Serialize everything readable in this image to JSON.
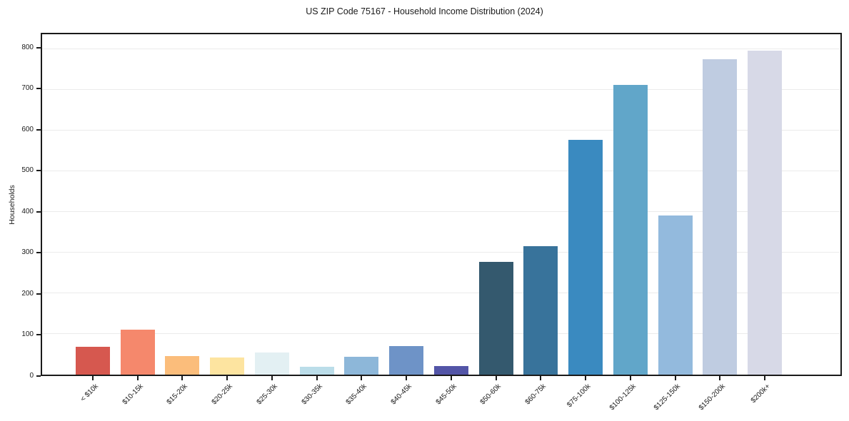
{
  "figure": {
    "background": "#ffffff"
  },
  "chart_data": {
    "type": "bar",
    "title": "US ZIP Code 75167 - Household Income Distribution (2024)",
    "xlabel": "",
    "ylabel": "Households",
    "categories": [
      "< $10k",
      "$10-15k",
      "$15-20k",
      "$20-25k",
      "$25-30k",
      "$30-35k",
      "$35-40k",
      "$40-45k",
      "$45-50k",
      "$50-60k",
      "$60-75k",
      "$75-100k",
      "$100-125k",
      "$125-150k",
      "$150-200k",
      "$200k+"
    ],
    "values": [
      69,
      111,
      46,
      42,
      54,
      19,
      44,
      70,
      21,
      277,
      315,
      576,
      711,
      390,
      775,
      795
    ],
    "bar_colors": [
      "#d6584f",
      "#f5886c",
      "#fbbd7b",
      "#fde4a0",
      "#e3f0f3",
      "#bbdde9",
      "#8db7d9",
      "#6e93c7",
      "#5355a7",
      "#34596e",
      "#38739b",
      "#3a8ac0",
      "#61a6c9",
      "#93badd",
      "#bfcce1",
      "#d7d9e7"
    ],
    "yticks": [
      0,
      100,
      200,
      300,
      400,
      500,
      600,
      700,
      800
    ],
    "ylim": [
      0,
      836
    ],
    "grid": "horizontal",
    "legend": "none",
    "colors": {
      "gridline": "#ebebeb",
      "spine": "#1a1a1a",
      "text": "#1a1a1a",
      "background": "#ffffff"
    }
  }
}
